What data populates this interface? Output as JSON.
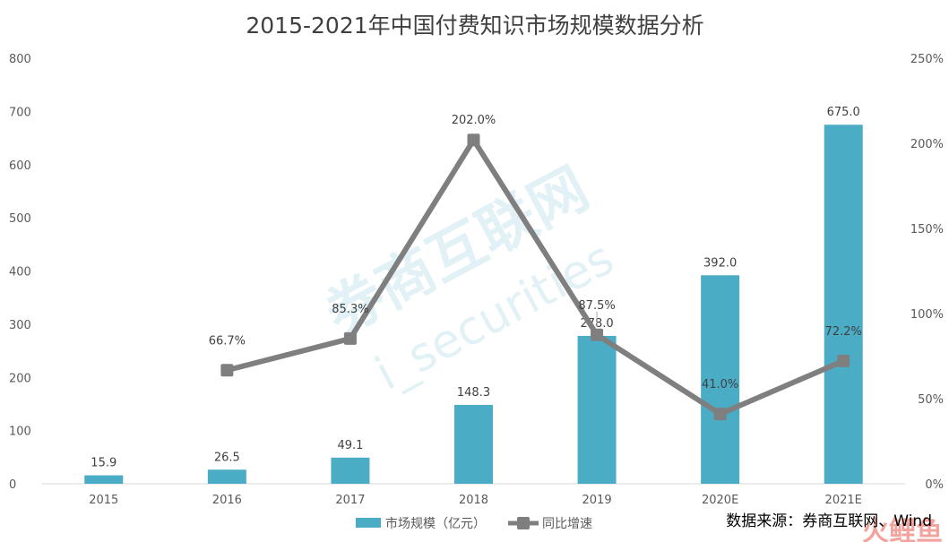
{
  "chart_data": {
    "type": "bar+line",
    "title": "2015-2021年中国付费知识市场规模数据分析",
    "categories": [
      "2015",
      "2016",
      "2017",
      "2018",
      "2019",
      "2020E",
      "2021E"
    ],
    "series": [
      {
        "name": "市场规模（亿元）",
        "type": "bar",
        "axis": "left",
        "color": "#4bacc6",
        "values": [
          15.9,
          26.5,
          49.1,
          148.3,
          278.0,
          392.0,
          675.0
        ],
        "labels": [
          "15.9",
          "26.5",
          "49.1",
          "148.3",
          "278.0",
          "392.0",
          "675.0"
        ]
      },
      {
        "name": "同比增速",
        "type": "line",
        "axis": "right",
        "color": "#7f7f7f",
        "values": [
          null,
          66.7,
          85.3,
          202.0,
          87.5,
          41.0,
          72.2
        ],
        "labels": [
          "",
          "66.7%",
          "85.3%",
          "202.0%",
          "87.5%",
          "41.0%",
          "72.2%"
        ]
      }
    ],
    "y_left": {
      "ylim": [
        0,
        800
      ],
      "ticks": [
        "0",
        "100",
        "200",
        "300",
        "400",
        "500",
        "600",
        "700",
        "800"
      ]
    },
    "y_right": {
      "ylim": [
        0,
        250
      ],
      "ticks": [
        "0%",
        "50%",
        "100%",
        "150%",
        "200%",
        "250%"
      ]
    },
    "legend_position": "bottom",
    "grid": false
  },
  "source": "数据来源：券商互联网、Wind",
  "watermark": {
    "main": "券商互联网",
    "sub": "i_securities",
    "corner": "火鲤鱼"
  }
}
